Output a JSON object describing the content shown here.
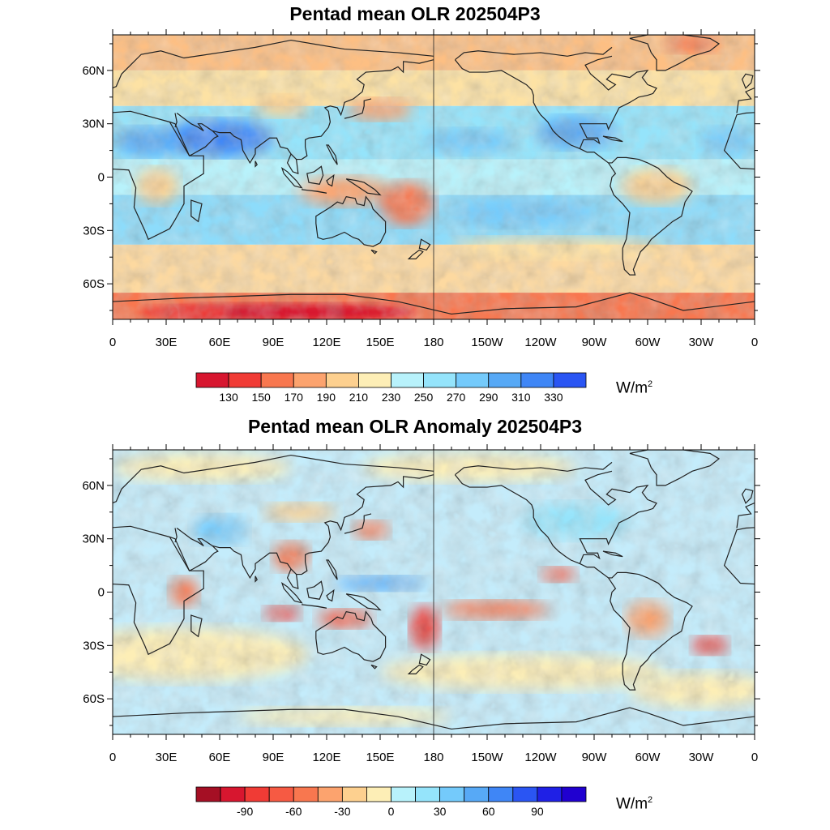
{
  "maps": [
    {
      "title": "Pentad mean OLR 202504P3",
      "lat_labels": [
        "60N",
        "30N",
        "0",
        "30S",
        "60S"
      ],
      "lon_labels": [
        "0",
        "30E",
        "60E",
        "90E",
        "120E",
        "150E",
        "180",
        "150W",
        "120W",
        "90W",
        "60W",
        "30W",
        "0"
      ],
      "colorbar": {
        "colors": [
          "#d7162f",
          "#f03b35",
          "#f8774f",
          "#fca36e",
          "#fdd08f",
          "#fdeeb6",
          "#b8f2fb",
          "#95e4fb",
          "#74cafb",
          "#57a9f6",
          "#3f86f6",
          "#2a55f3"
        ],
        "labels": [
          "130",
          "150",
          "170",
          "190",
          "210",
          "230",
          "250",
          "270",
          "290",
          "310",
          "330"
        ],
        "unit": "W/m",
        "unit_sup": "2"
      }
    },
    {
      "title": "Pentad mean OLR Anomaly 202504P3",
      "lat_labels": [
        "60N",
        "30N",
        "0",
        "30S",
        "60S"
      ],
      "lon_labels": [
        "0",
        "30E",
        "60E",
        "90E",
        "120E",
        "150E",
        "180",
        "150W",
        "120W",
        "90W",
        "60W",
        "30W",
        "0"
      ],
      "colorbar": {
        "colors": [
          "#a50f24",
          "#d7162f",
          "#f03b35",
          "#f65a43",
          "#f8774f",
          "#fca36e",
          "#fdd08f",
          "#fdeeb6",
          "#b8f2fb",
          "#95e4fb",
          "#74cafb",
          "#57a9f6",
          "#3f86f6",
          "#2a55f3",
          "#1f20e6",
          "#2000d0"
        ],
        "labels": [
          "-90",
          "-60",
          "-30",
          "0",
          "30",
          "60",
          "90"
        ],
        "label_slots": [
          2,
          4,
          6,
          8,
          10,
          12,
          14
        ],
        "unit": "W/m",
        "unit_sup": "2"
      }
    }
  ]
}
